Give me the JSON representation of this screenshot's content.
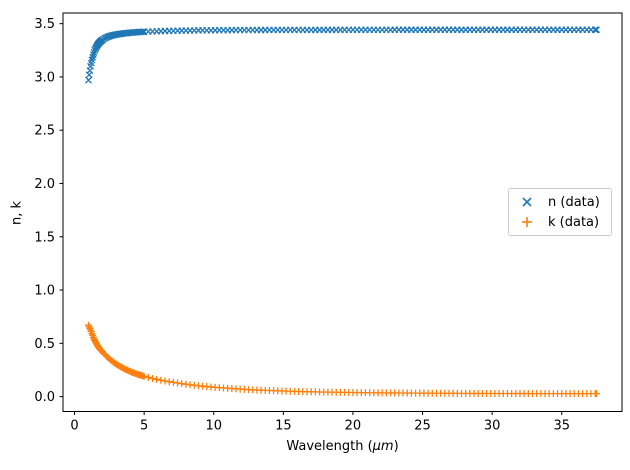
{
  "figure": {
    "background": "#ffffff",
    "frame_color": "#000000"
  },
  "chart_data": {
    "type": "scatter",
    "title": "",
    "xlabel_prefix": "Wavelength (",
    "xlabel_unit": "μm",
    "xlabel_suffix": ")",
    "ylabel": "n, k",
    "xlim": [
      -0.83,
      39.33
    ],
    "ylim": [
      -0.14,
      3.6
    ],
    "xticks": [
      0,
      5,
      10,
      15,
      20,
      25,
      30,
      35
    ],
    "yticks": [
      "0.0",
      "0.5",
      "1.0",
      "1.5",
      "2.0",
      "2.5",
      "3.0",
      "3.5"
    ],
    "grid": false,
    "legend": {
      "position": "center-right",
      "items": [
        {
          "label": "n (data)",
          "marker": "x",
          "color": "#1f77b4"
        },
        {
          "label": "k (data)",
          "marker": "+",
          "color": "#ff7f0e"
        }
      ]
    },
    "sampling_segments": [
      {
        "from": 1.0,
        "to": 2.0,
        "step": 0.05
      },
      {
        "from": 2.0,
        "to": 5.0,
        "step": 0.1
      },
      {
        "from": 5.0,
        "to": 37.5,
        "step": 0.3
      }
    ],
    "series": [
      {
        "name": "n (data)",
        "marker": "x",
        "color": "#1f77b4",
        "anchors_x": [
          1.0,
          1.05,
          1.1,
          1.15,
          1.2,
          1.25,
          1.3,
          1.35,
          1.4,
          1.45,
          1.5,
          1.6,
          1.7,
          1.8,
          1.9,
          2.0,
          2.2,
          2.4,
          2.6,
          2.8,
          3.0,
          3.5,
          4.0,
          4.5,
          5.0,
          6.0,
          7.0,
          8.0,
          9.0,
          10,
          12,
          15,
          20,
          25,
          30,
          37.5
        ],
        "anchors_y": [
          2.97,
          3.02,
          3.06,
          3.1,
          3.13,
          3.16,
          3.185,
          3.21,
          3.23,
          3.25,
          3.265,
          3.29,
          3.31,
          3.325,
          3.337,
          3.348,
          3.365,
          3.377,
          3.386,
          3.393,
          3.398,
          3.408,
          3.415,
          3.42,
          3.424,
          3.429,
          3.433,
          3.435,
          3.437,
          3.438,
          3.44,
          3.441,
          3.442,
          3.443,
          3.443,
          3.443
        ]
      },
      {
        "name": "k (data)",
        "marker": "+",
        "color": "#ff7f0e",
        "anchors_x": [
          1.0,
          1.05,
          1.1,
          1.15,
          1.2,
          1.25,
          1.3,
          1.35,
          1.4,
          1.45,
          1.5,
          1.6,
          1.7,
          1.8,
          1.9,
          2.0,
          2.2,
          2.4,
          2.6,
          2.8,
          3.0,
          3.5,
          4.0,
          4.5,
          5.0,
          5.5,
          6.0,
          7.0,
          8.0,
          9.0,
          10,
          11,
          12,
          13,
          14,
          15,
          16,
          18,
          20,
          22,
          25,
          28,
          30,
          33,
          36,
          37.5
        ],
        "anchors_y": [
          0.67,
          0.655,
          0.64,
          0.625,
          0.61,
          0.59,
          0.575,
          0.555,
          0.54,
          0.527,
          0.515,
          0.49,
          0.468,
          0.45,
          0.434,
          0.42,
          0.392,
          0.366,
          0.343,
          0.322,
          0.303,
          0.265,
          0.235,
          0.21,
          0.19,
          0.173,
          0.158,
          0.135,
          0.116,
          0.1,
          0.088,
          0.078,
          0.069,
          0.062,
          0.057,
          0.052,
          0.048,
          0.042,
          0.038,
          0.035,
          0.032,
          0.03,
          0.029,
          0.028,
          0.028,
          0.028
        ]
      }
    ]
  }
}
